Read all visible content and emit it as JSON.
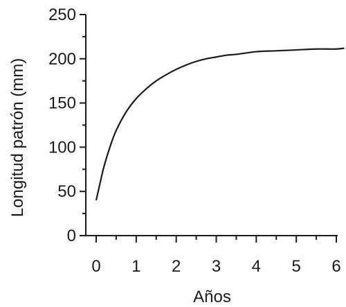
{
  "chart_data": {
    "type": "line",
    "xlabel": "Años",
    "ylabel": "Longitud patrón (mm)",
    "xlim": [
      0,
      6
    ],
    "ylim": [
      0,
      250
    ],
    "x_ticks": [
      0,
      1,
      2,
      3,
      4,
      5,
      6
    ],
    "y_ticks": [
      0,
      50,
      100,
      150,
      200,
      250
    ],
    "x_minor_step": 0.5,
    "y_minor_step": 25,
    "grid": false,
    "legend": "none",
    "colors": {
      "line": "#1a1a1a",
      "axis": "#1a1a1a"
    },
    "series": [
      {
        "x": [
          0,
          0.1,
          0.2,
          0.35,
          0.5,
          0.75,
          1.0,
          1.25,
          1.5,
          1.75,
          2.0,
          2.25,
          2.5,
          2.75,
          3.0,
          3.25,
          3.5,
          4.0,
          4.5,
          5.0,
          5.5,
          6.0,
          6.2
        ],
        "y": [
          40,
          60,
          79,
          101,
          119,
          140,
          155,
          166,
          175,
          182,
          188,
          193,
          197,
          200,
          202,
          204,
          205,
          208,
          209,
          210,
          211,
          211,
          212
        ]
      }
    ]
  }
}
